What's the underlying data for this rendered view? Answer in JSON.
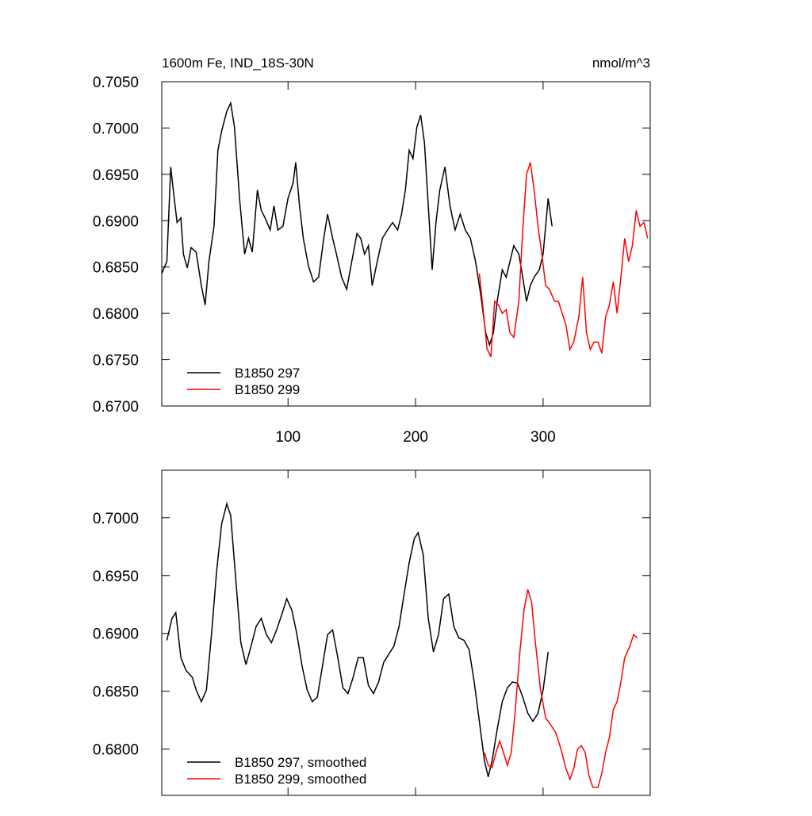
{
  "chart_data": [
    {
      "type": "line",
      "title": "1600m Fe, IND_18S-30N",
      "subtitle": "nmol/m^3",
      "xlim": [
        1,
        384
      ],
      "ylim": [
        0.67,
        0.705
      ],
      "xticks": [
        100,
        200,
        300
      ],
      "yticks": [
        {
          "value": 0.67,
          "label": "0.6700"
        },
        {
          "value": 0.675,
          "label": "0.6750"
        },
        {
          "value": 0.68,
          "label": "0.6800"
        },
        {
          "value": 0.685,
          "label": "0.6850"
        },
        {
          "value": 0.69,
          "label": "0.6900"
        },
        {
          "value": 0.695,
          "label": "0.6950"
        },
        {
          "value": 0.7,
          "label": "0.7000"
        },
        {
          "value": 0.705,
          "label": "0.7050"
        }
      ],
      "legend": "lower left",
      "series": [
        {
          "name": "B1850 297",
          "color": "#000000",
          "x": [
            1,
            5,
            8,
            10,
            13,
            16,
            18,
            21,
            24,
            28,
            32,
            35,
            38,
            42,
            45,
            48,
            52,
            55,
            58,
            62,
            66,
            69,
            72,
            76,
            79,
            82,
            86,
            89,
            92,
            96,
            100,
            104,
            106,
            109,
            112,
            116,
            120,
            124,
            128,
            131,
            135,
            138,
            142,
            146,
            150,
            154,
            157,
            160,
            163,
            166,
            170,
            174,
            178,
            182,
            186,
            189,
            192,
            195,
            198,
            201,
            204,
            207,
            210,
            213,
            216,
            219,
            223,
            227,
            231,
            235,
            239,
            243,
            247,
            251,
            255,
            258,
            261,
            264,
            268,
            271,
            274,
            277,
            281,
            284,
            287,
            290,
            293,
            297,
            300,
            304,
            307
          ],
          "values": [
            0.6843,
            0.6856,
            0.6958,
            0.6933,
            0.6898,
            0.6903,
            0.6864,
            0.6849,
            0.6871,
            0.6866,
            0.683,
            0.6809,
            0.6856,
            0.6894,
            0.6976,
            0.6997,
            0.7018,
            0.7027,
            0.7001,
            0.6924,
            0.6864,
            0.6881,
            0.6866,
            0.6933,
            0.6911,
            0.6903,
            0.689,
            0.6916,
            0.689,
            0.6894,
            0.6924,
            0.6941,
            0.6963,
            0.6916,
            0.6881,
            0.6851,
            0.6834,
            0.6839,
            0.6881,
            0.6907,
            0.6881,
            0.6864,
            0.6839,
            0.6826,
            0.6856,
            0.6886,
            0.6881,
            0.6864,
            0.6873,
            0.683,
            0.6856,
            0.6881,
            0.689,
            0.6898,
            0.689,
            0.6907,
            0.6933,
            0.6976,
            0.6967,
            0.7001,
            0.7014,
            0.6984,
            0.6916,
            0.6847,
            0.6898,
            0.6933,
            0.6958,
            0.6916,
            0.689,
            0.6907,
            0.689,
            0.6881,
            0.6856,
            0.6821,
            0.6779,
            0.6766,
            0.6779,
            0.6813,
            0.6847,
            0.6839,
            0.6856,
            0.6873,
            0.6864,
            0.6839,
            0.6813,
            0.683,
            0.6839,
            0.6847,
            0.6864,
            0.6924,
            0.6894
          ]
        },
        {
          "name": "B1850 299",
          "color": "#ff0000",
          "x": [
            250,
            253,
            256,
            259,
            262,
            265,
            268,
            271,
            274,
            277,
            281,
            284,
            287,
            290,
            293,
            296,
            299,
            302,
            305,
            309,
            312,
            315,
            318,
            321,
            324,
            328,
            331,
            334,
            337,
            340,
            343,
            346,
            349,
            352,
            355,
            358,
            361,
            364,
            367,
            370,
            373,
            376,
            379,
            382
          ],
          "values": [
            0.6843,
            0.6804,
            0.6762,
            0.6753,
            0.6813,
            0.6809,
            0.68,
            0.6804,
            0.6779,
            0.6774,
            0.6813,
            0.689,
            0.695,
            0.6963,
            0.6933,
            0.6894,
            0.6864,
            0.683,
            0.6826,
            0.6813,
            0.6813,
            0.68,
            0.6787,
            0.6761,
            0.6769,
            0.6796,
            0.6839,
            0.6779,
            0.6761,
            0.6769,
            0.6769,
            0.6757,
            0.6796,
            0.6809,
            0.6834,
            0.68,
            0.6839,
            0.6881,
            0.6856,
            0.6873,
            0.6911,
            0.6894,
            0.6898,
            0.6881
          ]
        }
      ]
    },
    {
      "type": "line",
      "xlim": [
        1,
        384
      ],
      "ylim": [
        0.676,
        0.7041
      ],
      "xticks": [
        100,
        200,
        300
      ],
      "yticks": [
        {
          "value": 0.68,
          "label": "0.6800"
        },
        {
          "value": 0.685,
          "label": "0.6850"
        },
        {
          "value": 0.69,
          "label": "0.6900"
        },
        {
          "value": 0.695,
          "label": "0.6950"
        },
        {
          "value": 0.7,
          "label": "0.7000"
        }
      ],
      "legend": "lower left",
      "series": [
        {
          "name": "B1850 297, smoothed",
          "color": "#000000",
          "x": [
            5,
            9,
            12,
            16,
            20,
            25,
            28,
            32,
            36,
            40,
            44,
            48,
            52,
            55,
            59,
            63,
            67,
            71,
            75,
            79,
            83,
            87,
            91,
            95,
            99,
            103,
            107,
            111,
            115,
            119,
            123,
            127,
            131,
            135,
            139,
            143,
            147,
            151,
            155,
            159,
            163,
            167,
            171,
            175,
            179,
            183,
            187,
            191,
            195,
            199,
            202,
            206,
            210,
            214,
            218,
            222,
            226,
            230,
            234,
            238,
            242,
            246,
            250,
            254,
            257,
            260,
            264,
            268,
            272,
            276,
            280,
            284,
            288,
            292,
            296,
            300,
            304
          ],
          "values": [
            0.6894,
            0.6913,
            0.6918,
            0.6879,
            0.6868,
            0.6862,
            0.6851,
            0.6841,
            0.6851,
            0.6899,
            0.6954,
            0.6995,
            0.7012,
            0.7002,
            0.6947,
            0.6892,
            0.6873,
            0.6889,
            0.6906,
            0.6913,
            0.6899,
            0.6892,
            0.6903,
            0.6916,
            0.693,
            0.692,
            0.6899,
            0.6872,
            0.6851,
            0.6841,
            0.6845,
            0.6872,
            0.6899,
            0.6903,
            0.6879,
            0.6853,
            0.6848,
            0.6862,
            0.6879,
            0.6879,
            0.6855,
            0.6848,
            0.6858,
            0.6875,
            0.6882,
            0.6889,
            0.6906,
            0.6934,
            0.6961,
            0.6982,
            0.6987,
            0.6968,
            0.6913,
            0.6884,
            0.6899,
            0.693,
            0.6934,
            0.6906,
            0.6896,
            0.6894,
            0.6886,
            0.6858,
            0.6824,
            0.679,
            0.6776,
            0.679,
            0.6817,
            0.6841,
            0.6853,
            0.6858,
            0.6857,
            0.6845,
            0.6831,
            0.6824,
            0.6831,
            0.6851,
            0.6884
          ]
        },
        {
          "name": "B1850 299, smoothed",
          "color": "#ff0000",
          "x": [
            254,
            257,
            260,
            263,
            266,
            269,
            272,
            275,
            278,
            282,
            285,
            288,
            291,
            294,
            298,
            302,
            306,
            310,
            314,
            318,
            321,
            324,
            327,
            330,
            333,
            336,
            339,
            343,
            346,
            349,
            352,
            355,
            358,
            361,
            364,
            368,
            371,
            374
          ],
          "values": [
            0.6797,
            0.6786,
            0.6784,
            0.6797,
            0.6807,
            0.6797,
            0.6786,
            0.6797,
            0.6831,
            0.6886,
            0.692,
            0.6938,
            0.6927,
            0.6892,
            0.6851,
            0.6827,
            0.6821,
            0.6814,
            0.68,
            0.6783,
            0.6774,
            0.6783,
            0.68,
            0.6803,
            0.6797,
            0.6777,
            0.6767,
            0.6767,
            0.6779,
            0.6797,
            0.681,
            0.6834,
            0.6841,
            0.6858,
            0.6879,
            0.6889,
            0.6899,
            0.6896
          ]
        }
      ]
    }
  ]
}
